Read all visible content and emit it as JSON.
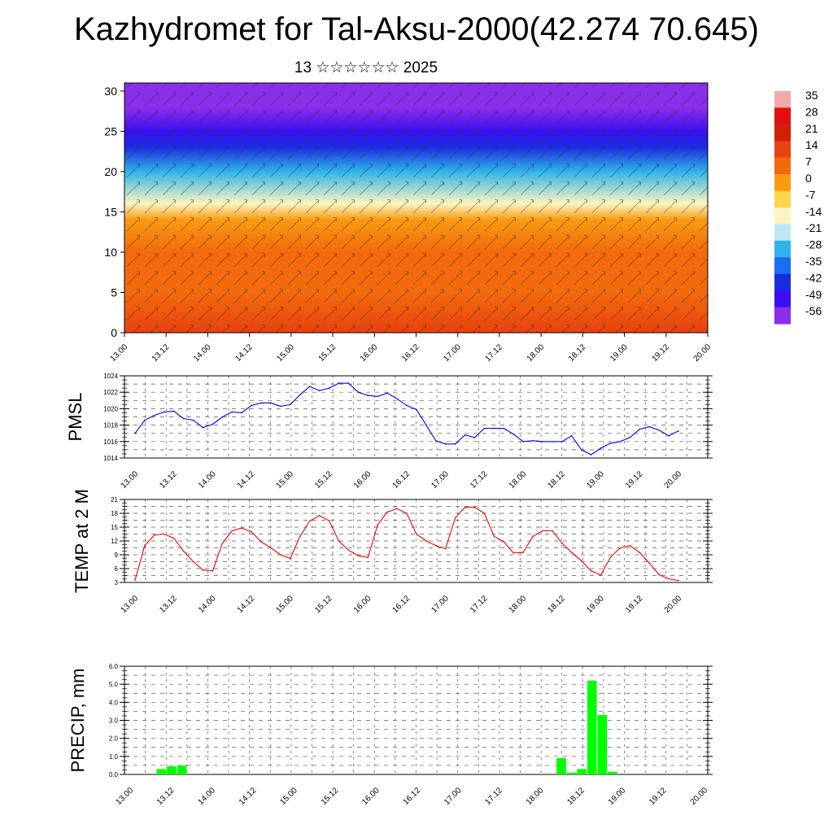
{
  "header": {
    "title": "Kazhydromet for Tal-Aksu-2000(42.274 70.645)",
    "subtitle": "13 ☆☆☆☆☆☆ 2025"
  },
  "colors": {
    "pmsl_line": "#0000ff",
    "temp_line": "#ff0000",
    "precip_bar": "#00ff00",
    "grid": "#555555"
  },
  "time_labels": [
    "13.00",
    "13.12",
    "14.00",
    "14.12",
    "15.00",
    "15.12",
    "16.00",
    "16.12",
    "17.00",
    "17.12",
    "18.00",
    "18.12",
    "19.00",
    "19.12",
    "20.00"
  ],
  "chart_data": [
    {
      "type": "heatmap",
      "title": "",
      "y_ticks": [
        "0",
        "5",
        "10",
        "15",
        "20",
        "25",
        "30"
      ],
      "ylim": [
        0,
        31
      ],
      "colorbar": {
        "labels": [
          "35",
          "28",
          "21",
          "14",
          "7",
          "0",
          "-7",
          "-14",
          "-21",
          "-28",
          "-35",
          "-42",
          "-49",
          "-56"
        ],
        "colors": [
          "#f4a9a9",
          "#e01010",
          "#d31e08",
          "#e74210",
          "#f26a0c",
          "#f99a12",
          "#ffd34a",
          "#fff4c0",
          "#bfe6f2",
          "#2eb4ea",
          "#1a6ef0",
          "#1b2ce0",
          "#3a10f0",
          "#8a2ee8"
        ]
      },
      "layers": [
        {
          "height": 0,
          "temp": 14
        },
        {
          "height": 5,
          "temp": 7
        },
        {
          "height": 10,
          "temp": 2
        },
        {
          "height": 14,
          "temp": -6
        },
        {
          "height": 16,
          "temp": -18
        },
        {
          "height": 20,
          "temp": -32
        },
        {
          "height": 23,
          "temp": -48
        },
        {
          "height": 25,
          "temp": -58
        },
        {
          "height": 28,
          "temp": -62
        },
        {
          "height": 31,
          "temp": -63
        }
      ]
    },
    {
      "type": "line",
      "ylabel": "PMSL",
      "y_ticks": [
        "1014",
        "1016",
        "1018",
        "1020",
        "1022",
        "1024"
      ],
      "ylim": [
        1014,
        1024
      ],
      "grid": true,
      "values": [
        1017.0,
        1018.6,
        1019.2,
        1019.6,
        1019.7,
        1018.8,
        1018.6,
        1017.7,
        1018.1,
        1019.0,
        1019.6,
        1019.5,
        1020.4,
        1020.7,
        1020.7,
        1020.3,
        1020.5,
        1021.7,
        1022.7,
        1022.2,
        1022.5,
        1023.1,
        1023.1,
        1022.0,
        1021.6,
        1021.5,
        1021.9,
        1021.2,
        1020.4,
        1019.9,
        1018.0,
        1016.1,
        1015.7,
        1015.7,
        1016.8,
        1016.5,
        1017.6,
        1017.6,
        1017.6,
        1016.9,
        1016.0,
        1016.1,
        1016.0,
        1016.0,
        1016.0,
        1016.7,
        1015.0,
        1014.4,
        1015.2,
        1015.8,
        1016.0,
        1016.5,
        1017.5,
        1017.8,
        1017.4,
        1016.7,
        1017.3
      ]
    },
    {
      "type": "line",
      "ylabel": "TEMP at 2 M",
      "y_ticks": [
        "3",
        "6",
        "9",
        "12",
        "15",
        "18",
        "21"
      ],
      "ylim": [
        3,
        21
      ],
      "grid": true,
      "values": [
        3.5,
        11.0,
        13.3,
        13.5,
        12.6,
        9.8,
        7.5,
        5.7,
        5.5,
        11.5,
        14.2,
        14.8,
        14.0,
        11.8,
        10.5,
        9.0,
        8.2,
        13.0,
        16.3,
        17.5,
        16.4,
        12.0,
        10.0,
        8.8,
        8.4,
        15.5,
        18.3,
        19.0,
        18.0,
        13.5,
        12.0,
        11.0,
        10.3,
        17.0,
        19.3,
        19.3,
        18.0,
        13.0,
        11.8,
        9.4,
        9.5,
        13.0,
        14.2,
        14.2,
        11.5,
        9.5,
        7.7,
        5.5,
        4.6,
        8.5,
        10.5,
        11.0,
        9.5,
        7.2,
        4.7,
        3.8,
        3.4
      ]
    },
    {
      "type": "bar",
      "ylabel": "PRECIP, mm",
      "y_ticks": [
        "0.0",
        "1.0",
        "2.0",
        "3.0",
        "4.0",
        "5.0",
        "6.0"
      ],
      "ylim": [
        0,
        6
      ],
      "grid": true,
      "bars": [
        {
          "index": 3,
          "value": 0.3
        },
        {
          "index": 4,
          "value": 0.45
        },
        {
          "index": 5,
          "value": 0.5
        },
        {
          "index": 42,
          "value": 0.9
        },
        {
          "index": 43,
          "value": 0.1
        },
        {
          "index": 44,
          "value": 0.3
        },
        {
          "index": 45,
          "value": 5.2
        },
        {
          "index": 46,
          "value": 3.3
        },
        {
          "index": 47,
          "value": 0.15
        }
      ]
    }
  ]
}
